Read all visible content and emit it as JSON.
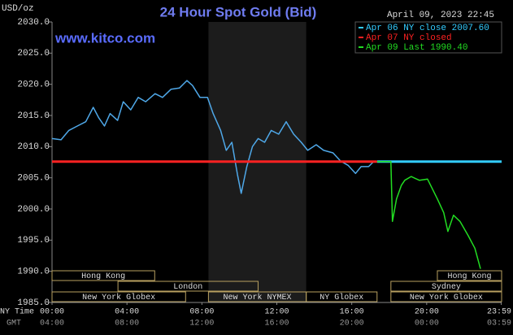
{
  "chart_data": {
    "type": "line",
    "title": "24 Hour Spot Gold (Bid)",
    "unit_label": "USD/oz",
    "site": "www.kitco.com",
    "date_label": "April 09, 2023 22:45",
    "x_axis_label": "NY Time",
    "x2_axis_label": "GMT",
    "xlim": [
      0,
      24
    ],
    "xticks": [
      {
        "value": 0,
        "label": "00:00"
      },
      {
        "value": 4,
        "label": "04:00"
      },
      {
        "value": 8,
        "label": "08:00"
      },
      {
        "value": 12,
        "label": "12:00"
      },
      {
        "value": 16,
        "label": "16:00"
      },
      {
        "value": 20,
        "label": "20:00"
      },
      {
        "value": 23.98,
        "label": "23:59"
      }
    ],
    "x2ticks": [
      {
        "value": 0,
        "label": "04:00"
      },
      {
        "value": 4,
        "label": "08:00"
      },
      {
        "value": 8,
        "label": "12:00"
      },
      {
        "value": 12,
        "label": "16:00"
      },
      {
        "value": 16,
        "label": "20:00"
      },
      {
        "value": 20,
        "label": "00:00"
      },
      {
        "value": 23.98,
        "label": "03:59"
      }
    ],
    "ylim": [
      1985,
      2030
    ],
    "yticks": [
      {
        "value": 1985,
        "label": "1985.0"
      },
      {
        "value": 1990,
        "label": "1990.0"
      },
      {
        "value": 1995,
        "label": "1995.0"
      },
      {
        "value": 2000,
        "label": "2000.0"
      },
      {
        "value": 2005,
        "label": "2005.0"
      },
      {
        "value": 2010,
        "label": "2010.0"
      },
      {
        "value": 2015,
        "label": "2015.0"
      },
      {
        "value": 2020,
        "label": "2020.0"
      },
      {
        "value": 2025,
        "label": "2025.0"
      },
      {
        "value": 2030,
        "label": "2030.0"
      }
    ],
    "legend": "top-right",
    "shaded_x": [
      8.35,
      13.57
    ],
    "price_line": {
      "color": "#4fa8e8",
      "x": [
        0,
        0.48,
        0.9,
        1.35,
        1.8,
        2.2,
        2.5,
        2.8,
        3.1,
        3.5,
        3.8,
        4.2,
        4.6,
        5.0,
        5.5,
        5.9,
        6.35,
        6.8,
        7.2,
        7.5,
        7.9,
        8.3,
        8.6,
        9.0,
        9.3,
        9.6,
        9.9,
        10.1,
        10.4,
        10.7,
        11.0,
        11.35,
        11.7,
        12.1,
        12.5,
        12.9,
        13.3,
        13.65,
        14.1,
        14.5,
        15.0,
        15.4,
        15.8,
        16.2,
        16.5,
        16.9,
        17.2
      ],
      "values": [
        2011.3,
        2011.1,
        2012.6,
        2013.3,
        2014.0,
        2016.3,
        2014.6,
        2013.3,
        2015.3,
        2014.2,
        2017.2,
        2015.9,
        2017.9,
        2017.2,
        2018.5,
        2017.9,
        2019.2,
        2019.4,
        2020.6,
        2019.8,
        2017.9,
        2017.9,
        2015.3,
        2012.6,
        2009.4,
        2010.7,
        2005.5,
        2002.5,
        2006.8,
        2010.0,
        2011.3,
        2010.7,
        2012.6,
        2012.0,
        2014.0,
        2012.0,
        2010.7,
        2009.4,
        2010.3,
        2009.4,
        2009.0,
        2007.7,
        2007.0,
        2005.7,
        2006.8,
        2006.8,
        2007.7
      ]
    },
    "series": [
      {
        "name": "Apr 06 NY close 2007.60",
        "color": "#33ccff",
        "x": [
          17.35,
          24
        ],
        "values": [
          2007.6,
          2007.6
        ]
      },
      {
        "name": "Apr 07 NY closed",
        "color": "#ff2222",
        "x": [
          0,
          17.35
        ],
        "values": [
          2007.6,
          2007.6
        ]
      },
      {
        "name": "Apr 09 Last 1990.40",
        "color": "#22dd22",
        "x": [
          17.35,
          18.09,
          18.17,
          18.39,
          18.65,
          18.83,
          19.17,
          19.61,
          20.04,
          20.26,
          20.57,
          20.91,
          21.13,
          21.43,
          21.78,
          22.22,
          22.57,
          22.87
        ],
        "values": [
          2007.6,
          2007.6,
          1998.0,
          2001.6,
          2003.8,
          2004.6,
          2005.2,
          2004.6,
          2004.8,
          2003.5,
          2001.6,
          1999.4,
          1996.4,
          1999.0,
          1998.0,
          1995.7,
          1993.7,
          1990.4
        ]
      }
    ],
    "sessions": [
      {
        "label": "Hong Kong",
        "start": 0,
        "end": 5.48,
        "row": 0
      },
      {
        "label": "London",
        "start": 3.52,
        "end": 11.0,
        "row": 1
      },
      {
        "label": "New York Globex",
        "start": 0,
        "end": 7.13,
        "row": 2
      },
      {
        "label": "New York NYMEX",
        "start": 8.35,
        "end": 13.57,
        "row": 2
      },
      {
        "label": "NY Globex",
        "start": 13.57,
        "end": 17.35,
        "row": 2
      },
      {
        "label": "Hong Kong",
        "start": 20.57,
        "end": 24,
        "row": 0
      },
      {
        "label": "Sydney",
        "start": 18.09,
        "end": 24,
        "row": 1
      },
      {
        "label": "New York Globex",
        "start": 18.09,
        "end": 24,
        "row": 2
      }
    ]
  }
}
